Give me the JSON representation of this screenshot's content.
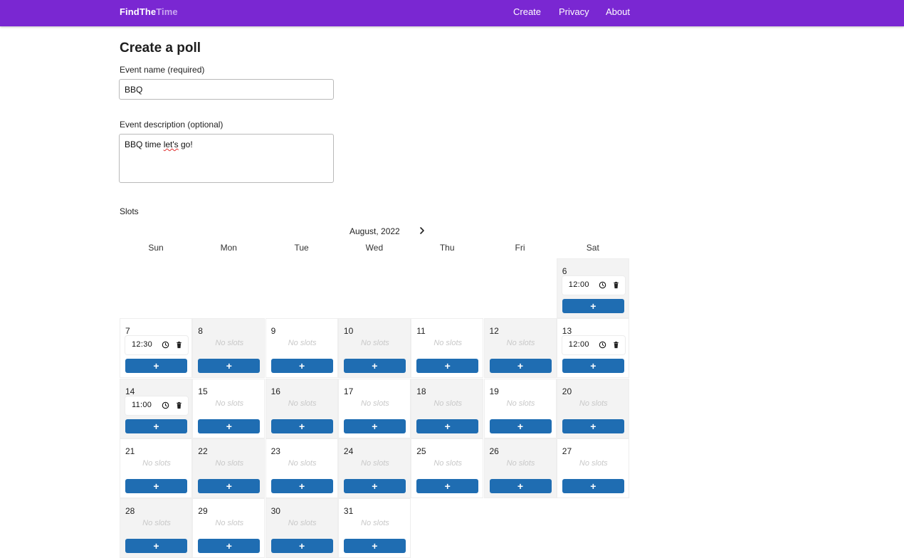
{
  "navbar": {
    "brand_part1": "FindThe",
    "brand_part2": "Time",
    "links": [
      "Create",
      "Privacy",
      "About"
    ]
  },
  "form": {
    "title": "Create a poll",
    "event_name_label": "Event name (required)",
    "event_name_value": "BBQ",
    "event_description_label": "Event description (optional)",
    "event_description_value_before": "BBQ time ",
    "event_description_value_misspelled": "let's",
    "event_description_value_after": " go!",
    "slots_label": "Slots"
  },
  "calendar": {
    "month": "August, 2022",
    "next_icon": "chevron-right-icon",
    "weekdays": [
      "Sun",
      "Mon",
      "Tue",
      "Wed",
      "Thu",
      "Fri",
      "Sat"
    ],
    "no_slots_text": "No slots",
    "add_label": "+",
    "days": [
      {
        "day": "6",
        "slot": "12:00"
      },
      {
        "day": "7",
        "slot": "12:30"
      },
      {
        "day": "8"
      },
      {
        "day": "9"
      },
      {
        "day": "10"
      },
      {
        "day": "11"
      },
      {
        "day": "12"
      },
      {
        "day": "13",
        "slot": "12:00"
      },
      {
        "day": "14",
        "slot": "11:00"
      },
      {
        "day": "15"
      },
      {
        "day": "16"
      },
      {
        "day": "17"
      },
      {
        "day": "18"
      },
      {
        "day": "19"
      },
      {
        "day": "20"
      },
      {
        "day": "21"
      },
      {
        "day": "22"
      },
      {
        "day": "23"
      },
      {
        "day": "24"
      },
      {
        "day": "25"
      },
      {
        "day": "26"
      },
      {
        "day": "27"
      },
      {
        "day": "28"
      },
      {
        "day": "29"
      },
      {
        "day": "30"
      },
      {
        "day": "31"
      }
    ]
  },
  "colors": {
    "navbar": "#7a27d2",
    "add_button": "#1f6db2",
    "shaded_cell": "#f3f3f3"
  }
}
